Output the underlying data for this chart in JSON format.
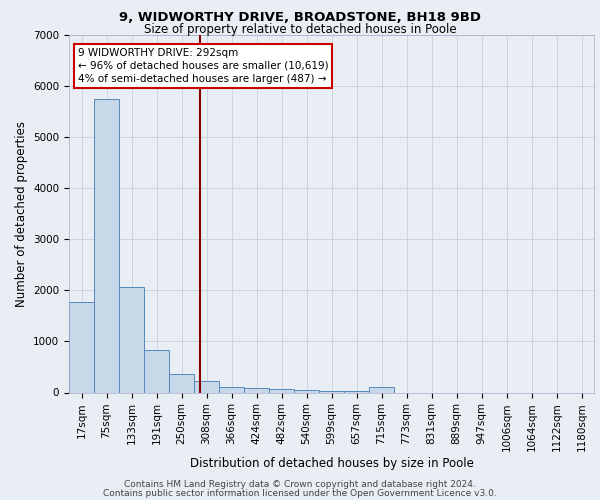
{
  "title1": "9, WIDWORTHY DRIVE, BROADSTONE, BH18 9BD",
  "title2": "Size of property relative to detached houses in Poole",
  "xlabel": "Distribution of detached houses by size in Poole",
  "ylabel": "Number of detached properties",
  "footer1": "Contains HM Land Registry data © Crown copyright and database right 2024.",
  "footer2": "Contains public sector information licensed under the Open Government Licence v3.0.",
  "bin_labels": [
    "17sqm",
    "75sqm",
    "133sqm",
    "191sqm",
    "250sqm",
    "308sqm",
    "366sqm",
    "424sqm",
    "482sqm",
    "540sqm",
    "599sqm",
    "657sqm",
    "715sqm",
    "773sqm",
    "831sqm",
    "889sqm",
    "947sqm",
    "1006sqm",
    "1064sqm",
    "1122sqm",
    "1180sqm"
  ],
  "bar_heights": [
    1780,
    5750,
    2070,
    830,
    370,
    230,
    110,
    90,
    60,
    40,
    30,
    20,
    110,
    0,
    0,
    0,
    0,
    0,
    0,
    0,
    0
  ],
  "bar_color": "#c8d8e8",
  "bar_edge_color": "#5588bb",
  "vline_color": "#880000",
  "annotation_text": "9 WIDWORTHY DRIVE: 292sqm\n← 96% of detached houses are smaller (10,619)\n4% of semi-detached houses are larger (487) →",
  "annotation_box_color": "white",
  "annotation_box_edge": "#cc0000",
  "ylim": [
    0,
    7000
  ],
  "yticks": [
    0,
    1000,
    2000,
    3000,
    4000,
    5000,
    6000,
    7000
  ],
  "background_color": "#e8eef4",
  "grid_color": "#c8d0dc",
  "title1_fontsize": 9.5,
  "title2_fontsize": 8.5,
  "xlabel_fontsize": 8.5,
  "ylabel_fontsize": 8.5,
  "tick_fontsize": 7.5,
  "footer_fontsize": 6.5
}
